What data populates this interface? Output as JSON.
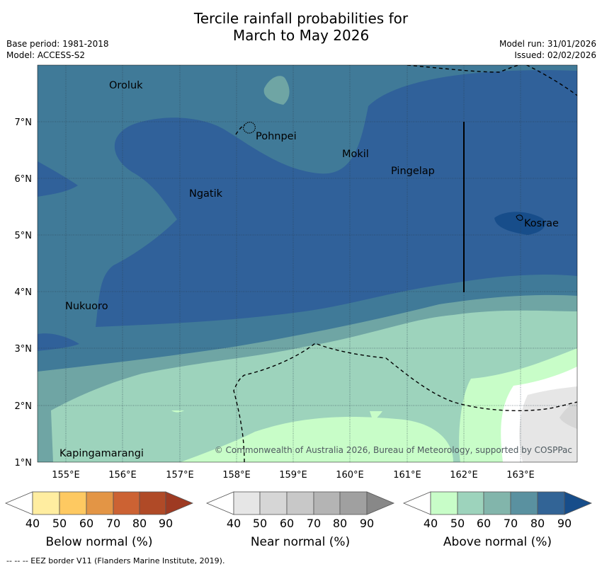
{
  "title_line1": "Tercile rainfall probabilities for",
  "title_line2": "March to May 2026",
  "base_period": "Base period: 1981-2018",
  "model": "Model: ACCESS-S2",
  "model_run": "Model run: 31/01/2026",
  "issued": "Issued: 02/02/2026",
  "copyright": "© Commonwealth of Australia 2026, Bureau of Meteorology, supported by COSPPac",
  "footer": "--  --  -- EEZ border V11 (Flanders Marine Institute, 2019).",
  "lat_labels": [
    "7°N",
    "6°N",
    "5°N",
    "4°N",
    "3°N",
    "2°N",
    "1°N"
  ],
  "lon_labels": [
    "155°E",
    "156°E",
    "157°E",
    "158°E",
    "159°E",
    "160°E",
    "161°E",
    "162°E",
    "163°E"
  ],
  "places": {
    "oroluk": "Oroluk",
    "pohnpei": "Pohnpei",
    "mokil": "Mokil",
    "pingelap": "Pingelap",
    "ngatik": "Ngatik",
    "kosrae": "Kosrae",
    "nukuoro": "Nukuoro",
    "kapingamarangi": "Kapingamarangi"
  },
  "colorbars": {
    "below": {
      "title": "Below normal (%)",
      "ticks": [
        "40",
        "50",
        "60",
        "70",
        "80",
        "90"
      ],
      "colors": [
        "#ffeda0",
        "#fec961",
        "#e39545",
        "#cc6233",
        "#b04a27",
        "#9e3a22"
      ]
    },
    "near": {
      "title": "Near normal (%)",
      "ticks": [
        "40",
        "50",
        "60",
        "70",
        "80",
        "90"
      ],
      "colors": [
        "#e6e6e6",
        "#d6d6d6",
        "#c8c8c8",
        "#b4b4b4",
        "#a0a0a0",
        "#888888"
      ]
    },
    "above": {
      "title": "Above normal (%)",
      "ticks": [
        "40",
        "50",
        "60",
        "70",
        "80",
        "90"
      ],
      "colors": [
        "#c8fdc8",
        "#9dd3bc",
        "#82b5ab",
        "#5a91a0",
        "#326496",
        "#174d8a"
      ]
    }
  },
  "map_colors": {
    "above_50": "#c8fdc8",
    "above_60": "#9dd3bc",
    "above_70": "#6fa5a4",
    "above_80": "#407a98",
    "above_90": "#30619a",
    "above_max": "#174d8a",
    "near_40": "#e6e6e6",
    "near_50": "#d6d6d6"
  }
}
